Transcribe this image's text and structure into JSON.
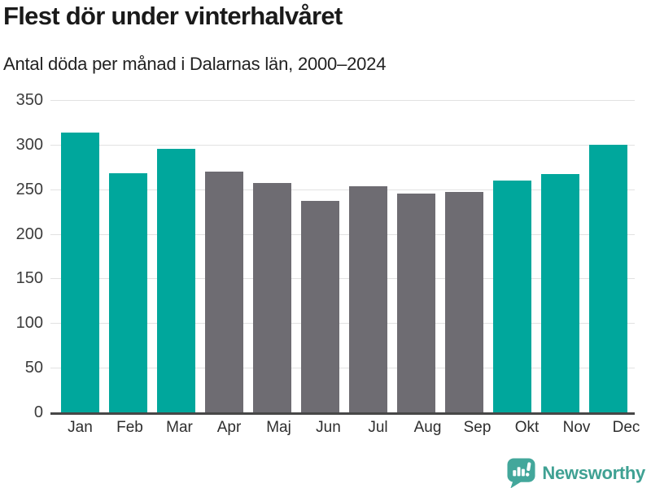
{
  "header": {
    "title": "Flest dör under vinterhalvåret",
    "subtitle": "Antal döda per månad i Dalarnas län, 2000–2024"
  },
  "chart_data": {
    "type": "bar",
    "title": "Flest dör under vinterhalvåret",
    "subtitle": "Antal döda per månad i Dalarnas län, 2000–2024",
    "categories": [
      "Jan",
      "Feb",
      "Mar",
      "Apr",
      "Maj",
      "Jun",
      "Jul",
      "Aug",
      "Sep",
      "Okt",
      "Nov",
      "Dec"
    ],
    "values": [
      314,
      268,
      295,
      270,
      257,
      237,
      253,
      245,
      247,
      260,
      267,
      300
    ],
    "bar_colors": [
      "#00a79c",
      "#00a79c",
      "#00a79c",
      "#6e6c72",
      "#6e6c72",
      "#6e6c72",
      "#6e6c72",
      "#6e6c72",
      "#6e6c72",
      "#00a79c",
      "#00a79c",
      "#00a79c"
    ],
    "highlight_color": "#00a79c",
    "muted_color": "#6e6c72",
    "xlabel": "",
    "ylabel": "",
    "ylim": [
      0,
      350
    ],
    "yticks": [
      0,
      50,
      100,
      150,
      200,
      250,
      300,
      350
    ],
    "grid": true,
    "legend": false,
    "gridline_color": "#e2e2e2",
    "axis_color": "#474747"
  },
  "branding": {
    "logo_text": "Newsworthy",
    "logo_icon": "newsworthy-bar-chart-bubble-icon",
    "logo_bubble_color": "#43a79b",
    "logo_text_color": "#3fa193"
  }
}
